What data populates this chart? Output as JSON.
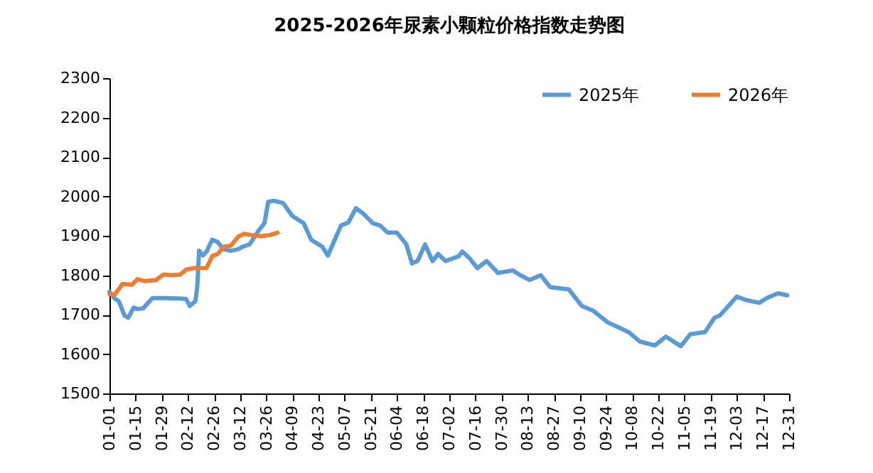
{
  "chart_data": {
    "type": "line",
    "title": "2025-2026年尿素小颗粒价格指数走势图",
    "legend": "top right",
    "line_style": "solid",
    "marker": "none",
    "xlim": [
      "--01-01",
      "--12-31"
    ],
    "xticks": [
      {
        "value": "--01-01",
        "label": "01-01"
      },
      {
        "value": "--01-15",
        "label": "01-15"
      },
      {
        "value": "--01-29",
        "label": "01-29"
      },
      {
        "value": "--02-12",
        "label": "02-12"
      },
      {
        "value": "--02-26",
        "label": "02-26"
      },
      {
        "value": "--03-12",
        "label": "03-12"
      },
      {
        "value": "--03-26",
        "label": "03-26"
      },
      {
        "value": "--04-09",
        "label": "04-09"
      },
      {
        "value": "--04-23",
        "label": "04-23"
      },
      {
        "value": "--05-07",
        "label": "05-07"
      },
      {
        "value": "--05-21",
        "label": "05-21"
      },
      {
        "value": "--06-04",
        "label": "06-04"
      },
      {
        "value": "--06-18",
        "label": "06-18"
      },
      {
        "value": "--07-02",
        "label": "07-02"
      },
      {
        "value": "--07-16",
        "label": "07-16"
      },
      {
        "value": "--07-30",
        "label": "07-30"
      },
      {
        "value": "--08-13",
        "label": "08-13"
      },
      {
        "value": "--08-27",
        "label": "08-27"
      },
      {
        "value": "--09-10",
        "label": "09-10"
      },
      {
        "value": "--09-24",
        "label": "09-24"
      },
      {
        "value": "--10-08",
        "label": "10-08"
      },
      {
        "value": "--10-22",
        "label": "10-22"
      },
      {
        "value": "--11-05",
        "label": "11-05"
      },
      {
        "value": "--11-19",
        "label": "11-19"
      },
      {
        "value": "--12-03",
        "label": "12-03"
      },
      {
        "value": "--12-17",
        "label": "12-17"
      },
      {
        "value": "--12-31",
        "label": "12-31"
      }
    ],
    "ylim": [
      1500,
      2300
    ],
    "yticks": [
      1500,
      1600,
      1700,
      1800,
      1900,
      2000,
      2100,
      2200,
      2300
    ],
    "series": [
      {
        "name": "2025年",
        "color": "#5b9bd5",
        "x": [
          "--01-01",
          "--01-04",
          "--01-06",
          "--01-09",
          "--01-11",
          "--01-14",
          "--01-16",
          "--01-19",
          "--01-24",
          "--01-31",
          "--02-11",
          "--02-13",
          "--02-16",
          "--02-17",
          "--02-18",
          "--02-20",
          "--02-22",
          "--02-25",
          "--02-28",
          "--03-03",
          "--03-07",
          "--03-11",
          "--03-13",
          "--03-17",
          "--03-22",
          "--03-25",
          "--03-27",
          "--03-30",
          "--04-04",
          "--04-09",
          "--04-15",
          "--04-19",
          "--04-25",
          "--04-28",
          "--04-30",
          "--05-05",
          "--05-09",
          "--05-13",
          "--05-17",
          "--05-22",
          "--05-26",
          "--05-30",
          "--06-04",
          "--06-09",
          "--06-12",
          "--06-15",
          "--06-19",
          "--06-23",
          "--06-26",
          "--06-30",
          "--07-07",
          "--07-09",
          "--07-13",
          "--07-17",
          "--07-22",
          "--07-28",
          "--08-05",
          "--08-09",
          "--08-14",
          "--08-20",
          "--08-25",
          "--09-04",
          "--09-11",
          "--09-17",
          "--09-25",
          "--10-06",
          "--10-12",
          "--10-20",
          "--10-26",
          "--11-03",
          "--11-08",
          "--11-16",
          "--11-21",
          "--11-24",
          "--12-03",
          "--12-08",
          "--12-15",
          "--12-19",
          "--12-25",
          "--12-30"
        ],
        "values": [
          1758,
          1740,
          1734,
          1698,
          1692,
          1718,
          1714,
          1716,
          1742,
          1742,
          1740,
          1722,
          1734,
          1770,
          1862,
          1850,
          1860,
          1890,
          1884,
          1866,
          1862,
          1866,
          1872,
          1878,
          1914,
          1932,
          1986,
          1989,
          1983,
          1950,
          1932,
          1890,
          1872,
          1850,
          1872,
          1926,
          1934,
          1970,
          1956,
          1932,
          1926,
          1908,
          1908,
          1878,
          1830,
          1836,
          1878,
          1836,
          1854,
          1836,
          1848,
          1860,
          1842,
          1818,
          1836,
          1806,
          1812,
          1800,
          1788,
          1800,
          1770,
          1764,
          1722,
          1710,
          1680,
          1656,
          1632,
          1622,
          1644,
          1620,
          1650,
          1656,
          1692,
          1698,
          1746,
          1737,
          1730,
          1742,
          1754,
          1749
        ]
      },
      {
        "name": "2026年",
        "color": "#ed7d31",
        "x": [
          "--01-01",
          "--01-04",
          "--01-08",
          "--01-13",
          "--01-16",
          "--01-20",
          "--01-26",
          "--01-30",
          "--02-03",
          "--02-08",
          "--02-11",
          "--02-15",
          "--02-22",
          "--02-25",
          "--02-28",
          "--03-03",
          "--03-07",
          "--03-11",
          "--03-14",
          "--03-18",
          "--03-23",
          "--03-28",
          "--04-01"
        ],
        "values": [
          1752,
          1752,
          1778,
          1776,
          1790,
          1785,
          1788,
          1802,
          1800,
          1802,
          1814,
          1818,
          1818,
          1848,
          1854,
          1872,
          1875,
          1898,
          1905,
          1902,
          1899,
          1902,
          1908
        ]
      }
    ]
  }
}
